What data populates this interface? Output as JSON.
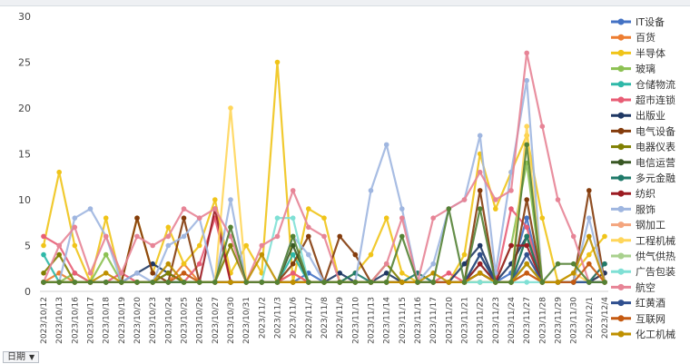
{
  "filter": {
    "label": "日期",
    "arrow_icon": "dropdown-arrow-icon"
  },
  "chart_data": {
    "type": "line",
    "ylim": [
      0,
      30
    ],
    "yticks": [
      0,
      5,
      10,
      15,
      20,
      25,
      30
    ],
    "grid": false,
    "legend_position": "right",
    "categories": [
      "2023/10/12",
      "2023/10/13",
      "2023/10/16",
      "2023/10/17",
      "2023/10/18",
      "2023/10/19",
      "2023/10/20",
      "2023/10/23",
      "2023/10/24",
      "2023/10/25",
      "2023/10/26",
      "2023/10/27",
      "2023/10/30",
      "2023/10/31",
      "2023/11/2",
      "2023/11/3",
      "2023/11/6",
      "2023/11/7",
      "2023/11/8",
      "2023/11/9",
      "2023/11/10",
      "2023/11/13",
      "2023/11/14",
      "2023/11/15",
      "2023/11/16",
      "2023/11/17",
      "2023/11/20",
      "2023/11/21",
      "2023/11/22",
      "2023/11/23",
      "2023/11/24",
      "2023/11/27",
      "2023/11/28",
      "2023/11/29",
      "2023/11/30",
      "2023/12/1",
      "2023/12/4"
    ],
    "series": [
      {
        "name": "IT设备",
        "color": "#4472c4",
        "values": [
          1,
          1,
          1,
          1,
          1,
          1,
          1,
          1,
          2,
          1,
          1,
          1,
          1,
          1,
          1,
          1,
          1,
          2,
          1,
          1,
          1,
          1,
          1,
          1,
          1,
          1,
          1,
          1,
          2,
          1,
          2,
          8,
          1,
          1,
          1,
          1,
          1
        ]
      },
      {
        "name": "百货",
        "color": "#ed7d31",
        "values": [
          1,
          2,
          1,
          1,
          1,
          1,
          1,
          1,
          1,
          3,
          1,
          1,
          1,
          1,
          1,
          1,
          2,
          1,
          1,
          1,
          1,
          1,
          1,
          1,
          1,
          1,
          1,
          1,
          1,
          1,
          1,
          2,
          1,
          1,
          1,
          1,
          2
        ]
      },
      {
        "name": "半导体",
        "color": "#f0c419",
        "values": [
          5,
          13,
          5,
          1,
          8,
          1,
          8,
          2,
          7,
          3,
          5,
          10,
          2,
          5,
          2,
          25,
          1,
          9,
          8,
          1,
          2,
          4,
          8,
          2,
          1,
          1,
          1,
          4,
          15,
          9,
          13,
          17,
          8,
          1,
          2,
          4,
          6
        ]
      },
      {
        "name": "玻璃",
        "color": "#8cc152",
        "values": [
          1,
          1,
          2,
          1,
          4,
          1,
          1,
          1,
          1,
          1,
          1,
          1,
          1,
          1,
          1,
          1,
          1,
          1,
          1,
          1,
          1,
          1,
          1,
          1,
          1,
          1,
          1,
          1,
          1,
          1,
          5,
          14,
          1,
          1,
          1,
          1,
          1
        ]
      },
      {
        "name": "仓储物流",
        "color": "#2eb8a8",
        "values": [
          4,
          1,
          1,
          1,
          1,
          1,
          1,
          1,
          1,
          1,
          1,
          1,
          1,
          1,
          1,
          1,
          4,
          1,
          1,
          1,
          1,
          1,
          1,
          1,
          1,
          1,
          1,
          1,
          3,
          1,
          1,
          3,
          1,
          1,
          1,
          1,
          1
        ]
      },
      {
        "name": "超市连锁",
        "color": "#e85d75",
        "values": [
          6,
          5,
          2,
          1,
          1,
          2,
          1,
          1,
          1,
          1,
          3,
          8,
          1,
          1,
          1,
          1,
          2,
          1,
          1,
          1,
          1,
          1,
          1,
          1,
          1,
          1,
          2,
          1,
          2,
          1,
          9,
          7,
          1,
          1,
          1,
          1,
          3
        ]
      },
      {
        "name": "出版业",
        "color": "#1f3864",
        "values": [
          1,
          1,
          1,
          1,
          1,
          1,
          2,
          3,
          2,
          1,
          1,
          1,
          1,
          1,
          1,
          1,
          1,
          1,
          1,
          2,
          1,
          1,
          2,
          1,
          1,
          1,
          1,
          3,
          5,
          1,
          3,
          6,
          1,
          1,
          1,
          1,
          2
        ]
      },
      {
        "name": "电气设备",
        "color": "#843c0c",
        "values": [
          1,
          1,
          1,
          1,
          1,
          1,
          8,
          2,
          1,
          8,
          1,
          1,
          1,
          1,
          1,
          1,
          3,
          6,
          1,
          6,
          4,
          1,
          1,
          1,
          1,
          1,
          1,
          1,
          11,
          1,
          1,
          10,
          1,
          1,
          1,
          11,
          1
        ]
      },
      {
        "name": "电器仪表",
        "color": "#7f7f00",
        "values": [
          2,
          4,
          1,
          1,
          1,
          1,
          1,
          1,
          2,
          1,
          1,
          1,
          5,
          1,
          1,
          1,
          1,
          1,
          1,
          1,
          1,
          1,
          3,
          1,
          1,
          1,
          1,
          1,
          2,
          1,
          1,
          6,
          1,
          1,
          1,
          1,
          1
        ]
      },
      {
        "name": "电信运营",
        "color": "#385723",
        "values": [
          1,
          1,
          1,
          1,
          1,
          1,
          1,
          1,
          1,
          1,
          1,
          1,
          1,
          1,
          1,
          1,
          5,
          1,
          1,
          1,
          1,
          1,
          1,
          1,
          1,
          1,
          1,
          1,
          4,
          1,
          1,
          3,
          1,
          1,
          1,
          1,
          1
        ]
      },
      {
        "name": "多元金融",
        "color": "#1f7a6a",
        "values": [
          1,
          1,
          1,
          1,
          1,
          1,
          1,
          1,
          1,
          1,
          1,
          1,
          1,
          1,
          1,
          1,
          1,
          1,
          1,
          1,
          2,
          1,
          1,
          1,
          2,
          1,
          1,
          1,
          2,
          1,
          1,
          6,
          1,
          1,
          1,
          1,
          3
        ]
      },
      {
        "name": "纺织",
        "color": "#9c1c22",
        "values": [
          1,
          1,
          1,
          1,
          1,
          1,
          1,
          1,
          1,
          1,
          1,
          9,
          1,
          1,
          1,
          1,
          1,
          1,
          1,
          1,
          1,
          1,
          1,
          1,
          1,
          1,
          1,
          1,
          3,
          1,
          5,
          5,
          1,
          1,
          1,
          1,
          1
        ]
      },
      {
        "name": "服饰",
        "color": "#9fb6e0",
        "values": [
          1,
          1,
          8,
          9,
          6,
          1,
          2,
          1,
          5,
          6,
          8,
          1,
          10,
          1,
          1,
          1,
          6,
          4,
          1,
          1,
          1,
          11,
          16,
          9,
          1,
          3,
          9,
          10,
          17,
          2,
          13,
          23,
          1,
          1,
          1,
          8,
          1
        ]
      },
      {
        "name": "钢加工",
        "color": "#f4a57e",
        "values": [
          1,
          1,
          1,
          1,
          1,
          1,
          1,
          1,
          1,
          1,
          1,
          1,
          1,
          1,
          1,
          1,
          1,
          1,
          1,
          1,
          1,
          1,
          1,
          1,
          1,
          1,
          1,
          1,
          1,
          1,
          1,
          2,
          1,
          1,
          1,
          1,
          1
        ]
      },
      {
        "name": "工程机械",
        "color": "#ffd65a",
        "values": [
          1,
          1,
          1,
          1,
          1,
          1,
          1,
          1,
          1,
          1,
          1,
          1,
          20,
          1,
          1,
          1,
          1,
          1,
          1,
          1,
          1,
          1,
          1,
          1,
          1,
          1,
          1,
          1,
          1,
          1,
          1,
          18,
          1,
          1,
          2,
          1,
          1
        ]
      },
      {
        "name": "供气供热",
        "color": "#a9d18e",
        "values": [
          1,
          1,
          1,
          1,
          1,
          1,
          1,
          1,
          1,
          1,
          1,
          1,
          1,
          1,
          1,
          1,
          1,
          1,
          1,
          1,
          1,
          1,
          1,
          1,
          1,
          1,
          1,
          1,
          1,
          1,
          1,
          3,
          1,
          1,
          1,
          1,
          1
        ]
      },
      {
        "name": "广告包装",
        "color": "#7fe0d5",
        "values": [
          1,
          1,
          1,
          1,
          1,
          1,
          1,
          1,
          1,
          1,
          1,
          1,
          1,
          1,
          1,
          8,
          8,
          1,
          1,
          1,
          1,
          1,
          1,
          1,
          1,
          1,
          1,
          1,
          1,
          1,
          1,
          1,
          1,
          1,
          1,
          1,
          1
        ]
      },
      {
        "name": "航空",
        "color": "#e78496",
        "values": [
          1,
          5,
          7,
          2,
          6,
          2,
          6,
          5,
          6,
          9,
          8,
          9,
          6,
          1,
          5,
          6,
          11,
          7,
          6,
          1,
          1,
          1,
          3,
          8,
          1,
          8,
          9,
          10,
          13,
          10,
          11,
          26,
          18,
          10,
          6,
          1,
          1
        ]
      },
      {
        "name": "红黄酒",
        "color": "#2f4f8f",
        "values": [
          1,
          1,
          1,
          1,
          1,
          1,
          1,
          1,
          1,
          1,
          1,
          1,
          1,
          1,
          1,
          1,
          1,
          1,
          1,
          1,
          1,
          1,
          1,
          1,
          1,
          1,
          1,
          1,
          4,
          1,
          1,
          4,
          1,
          1,
          1,
          1,
          1
        ]
      },
      {
        "name": "互联网",
        "color": "#c55a11",
        "values": [
          1,
          1,
          1,
          1,
          1,
          1,
          1,
          1,
          1,
          2,
          1,
          1,
          1,
          1,
          1,
          1,
          1,
          1,
          1,
          1,
          1,
          1,
          1,
          1,
          1,
          1,
          1,
          1,
          2,
          1,
          1,
          2,
          1,
          1,
          1,
          3,
          1
        ]
      },
      {
        "name": "化工机械",
        "color": "#bf9000",
        "values": [
          1,
          1,
          1,
          1,
          2,
          1,
          1,
          1,
          3,
          1,
          1,
          1,
          1,
          1,
          4,
          1,
          1,
          1,
          1,
          1,
          1,
          1,
          1,
          1,
          1,
          2,
          1,
          1,
          2,
          1,
          1,
          3,
          1,
          1,
          2,
          6,
          1
        ]
      },
      {
        "name": "",
        "color": "#548235",
        "values": [
          1,
          1,
          1,
          1,
          1,
          1,
          1,
          1,
          1,
          1,
          1,
          1,
          7,
          1,
          1,
          1,
          6,
          1,
          1,
          1,
          1,
          1,
          1,
          6,
          1,
          1,
          9,
          1,
          9,
          1,
          1,
          16,
          1,
          3,
          3,
          1,
          1
        ]
      }
    ]
  }
}
